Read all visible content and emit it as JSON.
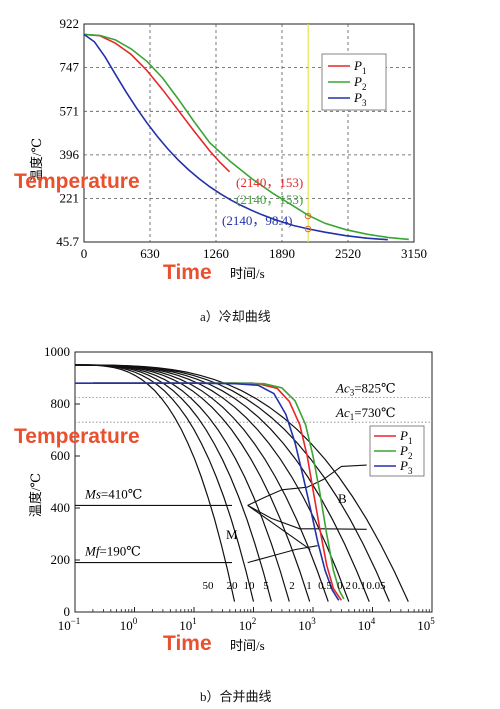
{
  "chart_data": [
    {
      "type": "line",
      "caption": "a）冷却曲线",
      "ylabel": "温度/℃",
      "xlabel": "时间/s",
      "overlay_y": "Temperature",
      "overlay_x": "Time",
      "xlim": [
        0,
        3150
      ],
      "ylim": [
        45.7,
        922
      ],
      "xticks": [
        "0",
        "630",
        "1260",
        "1890",
        "2520",
        "3150"
      ],
      "xtick_values": [
        0,
        630,
        1260,
        1890,
        2520,
        3150
      ],
      "yticks": [
        "45.7",
        "221",
        "396",
        "571",
        "747",
        "922"
      ],
      "ytick_values": [
        45.7,
        221,
        396,
        571,
        747,
        922
      ],
      "grid": true,
      "legend_position": "top-right",
      "marker_line_x": 2140,
      "series": [
        {
          "name": "P",
          "sub": "1",
          "color": "#e8262b",
          "x": [
            0,
            150,
            300,
            450,
            600,
            750,
            900,
            1050,
            1200,
            1300,
            1390
          ],
          "y": [
            880,
            875,
            845,
            800,
            735,
            658,
            575,
            492,
            412,
            365,
            328
          ]
        },
        {
          "name": "P",
          "sub": "2",
          "color": "#3aa535",
          "x": [
            0,
            150,
            300,
            450,
            600,
            750,
            900,
            1050,
            1200,
            1400,
            1600,
            1800,
            2000,
            2140,
            2300,
            2500,
            2700,
            2900,
            3100
          ],
          "y": [
            880,
            876,
            858,
            822,
            772,
            705,
            620,
            530,
            445,
            368,
            301,
            242,
            190,
            153,
            121,
            95,
            77,
            64,
            56
          ]
        },
        {
          "name": "P",
          "sub": "3",
          "color": "#2232a8",
          "x": [
            0,
            100,
            200,
            300,
            400,
            500,
            600,
            700,
            800,
            900,
            1000,
            1100,
            1200,
            1300,
            1400,
            1500,
            1600,
            1700,
            1800,
            1900,
            2000,
            2140,
            2300,
            2500,
            2700,
            2900
          ],
          "y": [
            880,
            850,
            790,
            720,
            650,
            585,
            525,
            470,
            420,
            375,
            335,
            300,
            268,
            240,
            215,
            193,
            173,
            155,
            139,
            125,
            112,
            98.4,
            85,
            71,
            61,
            55
          ]
        }
      ],
      "annotations": [
        {
          "text": "(2140，153)",
          "color": "#e8262b"
        },
        {
          "text": "(2140，153)",
          "color": "#3aa535"
        },
        {
          "text": "(2140，98.4)",
          "color": "#2232a8"
        }
      ]
    },
    {
      "type": "line",
      "caption": "b）合并曲线",
      "ylabel": "温度/℃",
      "xlabel": "时间/s",
      "overlay_y": "Temperature",
      "overlay_x": "Time",
      "x_scale": "log",
      "xlim": [
        0.1,
        100000
      ],
      "ylim": [
        0,
        1000
      ],
      "xticks": [
        "10",
        "10",
        "10",
        "10",
        "10",
        "10",
        "10"
      ],
      "xtick_exponents": [
        "−1",
        "0",
        "1",
        "2",
        "3",
        "4",
        "5"
      ],
      "xtick_values": [
        0.1,
        1,
        10,
        100,
        1000,
        10000,
        100000
      ],
      "yticks": [
        "0",
        "200",
        "400",
        "600",
        "800",
        "1000"
      ],
      "ytick_values": [
        0,
        200,
        400,
        600,
        800,
        1000
      ],
      "grid": false,
      "legend_position": "middle-right",
      "reference_lines": [
        {
          "label": "Ac",
          "sub": "3",
          "text": "=825℃",
          "value": 825
        },
        {
          "label": "Ac",
          "sub": "1",
          "text": "=730℃",
          "value": 730
        },
        {
          "label": "Ms",
          "text": "=410℃",
          "value": 410
        },
        {
          "label": "Mf",
          "text": "=190℃",
          "value": 190
        }
      ],
      "region_labels": [
        "M",
        "B"
      ],
      "cooling_rate_labels": [
        "50",
        "20",
        "10",
        "5",
        "2",
        "1",
        "0.5",
        "0.2",
        "0.1",
        "0.05"
      ],
      "series": [
        {
          "name": "P",
          "sub": "1",
          "color": "#e8262b",
          "x": [
            0.2,
            1,
            10,
            50,
            120,
            250,
            400,
            600,
            800,
            1000,
            1300,
            1700,
            2200,
            3000
          ],
          "y": [
            880,
            880,
            880,
            880,
            878,
            860,
            810,
            720,
            600,
            470,
            320,
            180,
            90,
            45
          ]
        },
        {
          "name": "P",
          "sub": "2",
          "color": "#3aa535",
          "x": [
            0.2,
            1,
            10,
            50,
            150,
            300,
            500,
            750,
            1000,
            1300,
            1700,
            2200,
            2800,
            3300
          ],
          "y": [
            880,
            880,
            880,
            880,
            878,
            862,
            812,
            720,
            600,
            460,
            300,
            160,
            80,
            50
          ]
        },
        {
          "name": "P",
          "sub": "3",
          "color": "#2232a8",
          "x": [
            0.2,
            1,
            10,
            50,
            120,
            220,
            350,
            500,
            700,
            900,
            1200,
            1600,
            2100,
            2700
          ],
          "y": [
            880,
            880,
            880,
            878,
            872,
            840,
            760,
            650,
            510,
            400,
            270,
            160,
            85,
            45
          ]
        }
      ]
    }
  ]
}
